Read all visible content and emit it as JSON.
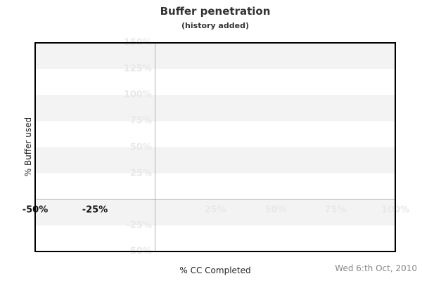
{
  "chart_data": {
    "type": "line",
    "title": "Buffer penetration",
    "subtitle": "(history added)",
    "xlabel": "% CC Completed",
    "ylabel": "% Buffer used",
    "date_annotation": "Wed 6:th Oct, 2010",
    "xlim": [
      -50,
      100
    ],
    "ylim": [
      -50,
      150
    ],
    "series": [],
    "legend": "none",
    "x_ticks": [
      {
        "value": -50,
        "label": "-50%",
        "style": "dark"
      },
      {
        "value": -25,
        "label": "-25%",
        "style": "dark"
      },
      {
        "value": 25,
        "label": "25%",
        "style": "faint"
      },
      {
        "value": 50,
        "label": "50%",
        "style": "faint"
      },
      {
        "value": 75,
        "label": "75%",
        "style": "faint"
      },
      {
        "value": 100,
        "label": "100%",
        "style": "faint"
      }
    ],
    "y_ticks": [
      {
        "value": 150,
        "label": "150%"
      },
      {
        "value": 125,
        "label": "125%"
      },
      {
        "value": 100,
        "label": "100%"
      },
      {
        "value": 75,
        "label": "75%"
      },
      {
        "value": 50,
        "label": "50%"
      },
      {
        "value": 25,
        "label": "25%"
      },
      {
        "value": -25,
        "label": "-25%"
      },
      {
        "value": -50,
        "label": "-50%"
      }
    ],
    "grid": {
      "horizontal_bands": "alternating light-gray/white bands every 25%, gray bands from 150-125, 100-75, 50-25, 0--25",
      "vertical_line_at": 0,
      "horizontal_line_at": 0
    },
    "colors": {
      "background": "#ffffff",
      "band_gray": "#f3f3f3",
      "faint_label": "#e8e8e8",
      "zero_lines": "#b0b0b0",
      "plot_border": "#000000",
      "dark_label": "#111111",
      "title_text": "#333333",
      "axis_title_text": "#222222",
      "date_text": "#888888"
    }
  }
}
